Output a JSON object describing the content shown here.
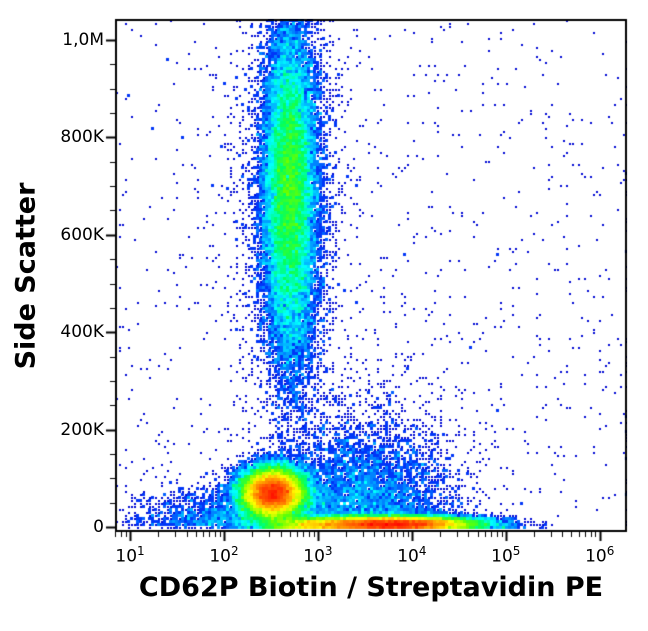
{
  "figure": {
    "background_color": "#ffffff",
    "frame_color": "#000000",
    "tick_color": "#000000"
  },
  "chart_data": {
    "type": "scatter",
    "subtype": "flow-cytometry-pseudocolor-density-dot-plot",
    "title": "",
    "xlabel": "CD62P Biotin / Streptavidin PE",
    "ylabel": "Side Scatter",
    "x_scale": "log10",
    "x_range_log10": [
      0.84,
      6.29
    ],
    "y_scale": "linear",
    "y_range": [
      -10000,
      1043000
    ],
    "grid": false,
    "legend": false,
    "x_major_tick_exponents": [
      1,
      2,
      3,
      4,
      5,
      6
    ],
    "x_minor_ticks": "log-decade-2-to-9",
    "y_ticks": [
      {
        "value": 0,
        "label": "0"
      },
      {
        "value": 200000,
        "label": "200K"
      },
      {
        "value": 400000,
        "label": "400K"
      },
      {
        "value": 600000,
        "label": "600K"
      },
      {
        "value": 800000,
        "label": "800K"
      },
      {
        "value": 1000000,
        "label": "1,0M"
      }
    ],
    "y_minor_tick_step": 50000,
    "density_colormap": [
      "#000080",
      "#0000cd",
      "#0040ff",
      "#00a0ff",
      "#00ffff",
      "#00ff60",
      "#66ff00",
      "#ffff00",
      "#ff8000",
      "#ff0000"
    ],
    "populations": [
      {
        "name": "granulocytes-high-ssc-column",
        "count": 20000,
        "x_log10_mean": 2.7,
        "x_log10_sd": 0.14,
        "y_mean": 700000,
        "y_sd": 165000,
        "clamp0": false
      },
      {
        "name": "granulocyte-halo",
        "count": 2400,
        "x_log10_mean": 2.7,
        "x_log10_sd": 0.3,
        "y_mean": 690000,
        "y_sd": 230000,
        "clamp0": false
      },
      {
        "name": "lymphocytes-monocytes-dense",
        "count": 26000,
        "x_log10_mean": 2.52,
        "x_log10_sd": 0.17,
        "y_mean": 70000,
        "y_sd": 26000,
        "clamp0": true
      },
      {
        "name": "cd62p-positive-platelet-band",
        "count": 21000,
        "x_log10_mean": 3.8,
        "x_log10_sd": 0.45,
        "y_mean": 7000,
        "y_sd": 7500,
        "clamp0": true
      },
      {
        "name": "cd62p-low-platelet-band",
        "count": 3500,
        "x_log10_mean": 2.95,
        "x_log10_sd": 0.3,
        "y_mean": 6000,
        "y_sd": 8000,
        "clamp0": true
      },
      {
        "name": "low-ssc-blue-cloud",
        "count": 5200,
        "x_log10_mean": 3.45,
        "x_log10_sd": 0.5,
        "y_mean": 0,
        "y_sd": 110000,
        "half_normal_y": true,
        "clamp0": true
      },
      {
        "name": "debris-left",
        "count": 1400,
        "x_log10_mean": 1.95,
        "x_log10_sd": 0.45,
        "y_mean": 0,
        "y_sd": 40000,
        "half_normal_y": true,
        "clamp0": true
      },
      {
        "name": "bridge-mid-ssc",
        "count": 700,
        "x_log10_mean": 2.75,
        "x_log10_sd": 0.18,
        "y_mean": 400000,
        "y_sd": 90000,
        "clamp0": false
      },
      {
        "name": "sparse-background",
        "count": 900,
        "uniform": true
      },
      {
        "name": "right-edge-pileup",
        "count": 45,
        "edge": "right"
      }
    ]
  }
}
